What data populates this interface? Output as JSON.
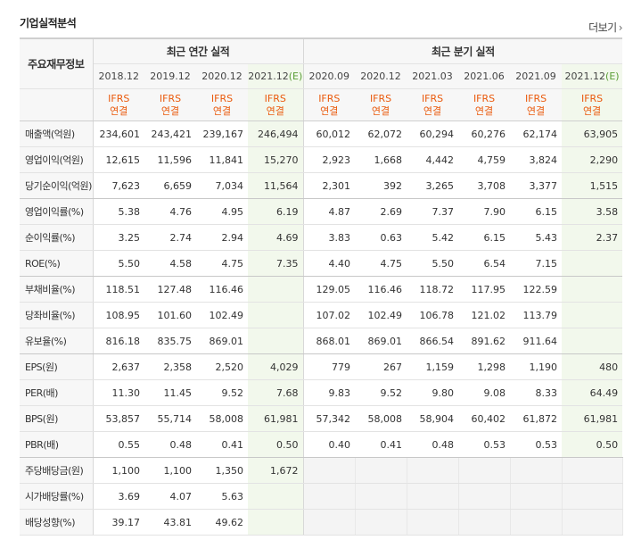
{
  "section": {
    "title": "기업실적분석",
    "more_label": "더보기",
    "more_icon": "chevron-right-icon"
  },
  "header": {
    "row_header": "주요재무정보",
    "annual_group": "최근 연간 실적",
    "quarter_group": "최근 분기 실적",
    "annual_periods": [
      "2018.12",
      "2019.12",
      "2020.12",
      "2021.12(E)"
    ],
    "quarter_periods": [
      "2020.09",
      "2020.12",
      "2021.03",
      "2021.06",
      "2021.09",
      "2021.12(E)"
    ],
    "ifrs_line1": "IFRS",
    "ifrs_line2": "연결"
  },
  "colors": {
    "ifrs": "#ea5a0d",
    "estimate_bg": "#f2f8ec",
    "estimate_mark": "#5a9e36"
  },
  "rows": [
    {
      "label": "매출액(억원)",
      "annual": [
        "234,601",
        "243,421",
        "239,167",
        "246,494"
      ],
      "quarter": [
        "60,012",
        "62,072",
        "60,294",
        "60,276",
        "62,174",
        "63,905"
      ]
    },
    {
      "label": "영업이익(억원)",
      "annual": [
        "12,615",
        "11,596",
        "11,841",
        "15,270"
      ],
      "quarter": [
        "2,923",
        "1,668",
        "4,442",
        "4,759",
        "3,824",
        "2,290"
      ]
    },
    {
      "label": "당기순이익(억원)",
      "annual": [
        "7,623",
        "6,659",
        "7,034",
        "11,564"
      ],
      "quarter": [
        "2,301",
        "392",
        "3,265",
        "3,708",
        "3,377",
        "1,515"
      ]
    },
    {
      "label": "영업이익률(%)",
      "annual": [
        "5.38",
        "4.76",
        "4.95",
        "6.19"
      ],
      "quarter": [
        "4.87",
        "2.69",
        "7.37",
        "7.90",
        "6.15",
        "3.58"
      ]
    },
    {
      "label": "순이익률(%)",
      "annual": [
        "3.25",
        "2.74",
        "2.94",
        "4.69"
      ],
      "quarter": [
        "3.83",
        "0.63",
        "5.42",
        "6.15",
        "5.43",
        "2.37"
      ]
    },
    {
      "label": "ROE(%)",
      "annual": [
        "5.50",
        "4.58",
        "4.75",
        "7.35"
      ],
      "quarter": [
        "4.40",
        "4.75",
        "5.50",
        "6.54",
        "7.15",
        ""
      ]
    },
    {
      "label": "부채비율(%)",
      "annual": [
        "118.51",
        "127.48",
        "116.46",
        ""
      ],
      "quarter": [
        "129.05",
        "116.46",
        "118.72",
        "117.95",
        "122.59",
        ""
      ]
    },
    {
      "label": "당좌비율(%)",
      "annual": [
        "108.95",
        "101.60",
        "102.49",
        ""
      ],
      "quarter": [
        "107.02",
        "102.49",
        "106.78",
        "121.02",
        "113.79",
        ""
      ]
    },
    {
      "label": "유보율(%)",
      "annual": [
        "816.18",
        "835.75",
        "869.01",
        ""
      ],
      "quarter": [
        "868.01",
        "869.01",
        "866.54",
        "891.62",
        "911.64",
        ""
      ]
    },
    {
      "label": "EPS(원)",
      "annual": [
        "2,637",
        "2,358",
        "2,520",
        "4,029"
      ],
      "quarter": [
        "779",
        "267",
        "1,159",
        "1,298",
        "1,190",
        "480"
      ]
    },
    {
      "label": "PER(배)",
      "annual": [
        "11.30",
        "11.45",
        "9.52",
        "7.68"
      ],
      "quarter": [
        "9.83",
        "9.52",
        "9.80",
        "9.08",
        "8.33",
        "64.49"
      ]
    },
    {
      "label": "BPS(원)",
      "annual": [
        "53,857",
        "55,714",
        "58,008",
        "61,981"
      ],
      "quarter": [
        "57,342",
        "58,008",
        "58,904",
        "60,402",
        "61,872",
        "61,981"
      ]
    },
    {
      "label": "PBR(배)",
      "annual": [
        "0.55",
        "0.48",
        "0.41",
        "0.50"
      ],
      "quarter": [
        "0.40",
        "0.41",
        "0.48",
        "0.53",
        "0.53",
        "0.50"
      ]
    },
    {
      "label": "주당배당금(원)",
      "annual": [
        "1,100",
        "1,100",
        "1,350",
        "1,672"
      ],
      "quarter": [
        "",
        "",
        "",
        "",
        "",
        ""
      ]
    },
    {
      "label": "시가배당률(%)",
      "annual": [
        "3.69",
        "4.07",
        "5.63",
        ""
      ],
      "quarter": [
        "",
        "",
        "",
        "",
        "",
        ""
      ]
    },
    {
      "label": "배당성향(%)",
      "annual": [
        "39.17",
        "43.81",
        "49.62",
        ""
      ],
      "quarter": [
        "",
        "",
        "",
        "",
        "",
        ""
      ]
    }
  ]
}
